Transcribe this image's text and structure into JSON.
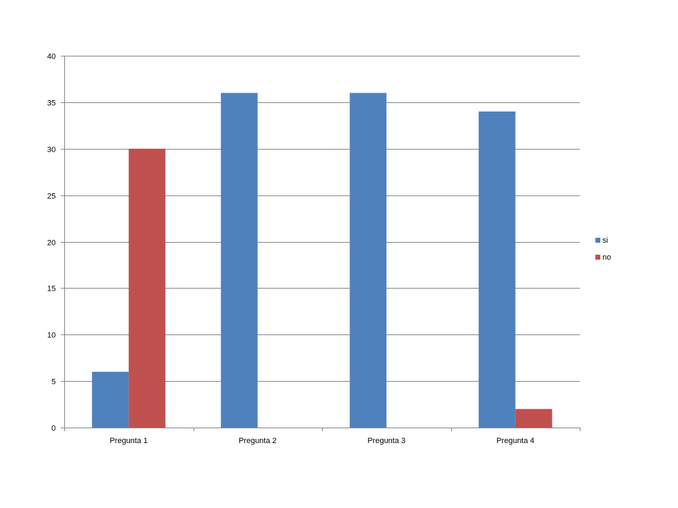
{
  "chart_data": {
    "type": "bar",
    "title": "",
    "xlabel": "",
    "ylabel": "",
    "categories": [
      "Pregunta 1",
      "Pregunta 2",
      "Pregunta 3",
      "Pregunta 4"
    ],
    "series": [
      {
        "name": "si",
        "color": "#4F81BD",
        "values": [
          6,
          36,
          36,
          34
        ]
      },
      {
        "name": "no",
        "color": "#C0504D",
        "values": [
          30,
          0,
          0,
          2
        ]
      }
    ],
    "ylim": [
      0,
      40
    ],
    "yticks": [
      0,
      5,
      10,
      15,
      20,
      25,
      30,
      35,
      40
    ],
    "grid": true,
    "legend_position": "right"
  }
}
